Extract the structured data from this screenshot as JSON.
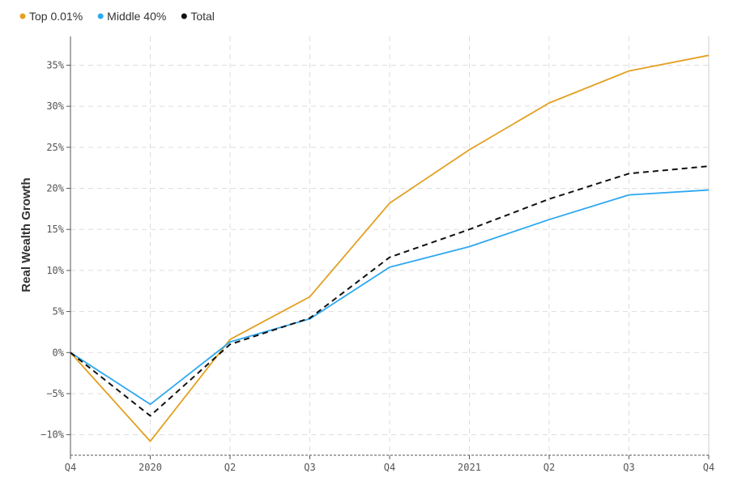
{
  "chart_data": {
    "type": "line",
    "title": "",
    "ylabel": "Real Wealth Growth",
    "xlabel": "",
    "categories": [
      "Q4",
      "2020",
      "Q2",
      "Q3",
      "Q4",
      "2021",
      "Q2",
      "Q3",
      "Q4"
    ],
    "ylim": [
      -12.5,
      38.5
    ],
    "yticks": [
      -10,
      -5,
      0,
      5,
      10,
      15,
      20,
      25,
      30,
      35
    ],
    "ytick_labels": [
      "−10%",
      "−5%",
      "0%",
      "5%",
      "10%",
      "15%",
      "20%",
      "25%",
      "30%",
      "35%"
    ],
    "grid": true,
    "legend_position": "top-left",
    "series": [
      {
        "name": "Top 0.01%",
        "color": "#e3a021",
        "dash": "solid",
        "values": [
          0,
          -10.8,
          1.6,
          6.8,
          18.2,
          24.7,
          30.4,
          34.3,
          36.2
        ]
      },
      {
        "name": "Middle 40%",
        "color": "#2ea8f0",
        "dash": "solid",
        "values": [
          0,
          -6.3,
          1.3,
          4.1,
          10.4,
          12.9,
          16.2,
          19.2,
          19.8
        ]
      },
      {
        "name": "Total",
        "color": "#111111",
        "dash": "dashed",
        "values": [
          0,
          -7.7,
          1.0,
          4.2,
          11.6,
          15.0,
          18.7,
          21.8,
          22.7
        ]
      }
    ]
  }
}
